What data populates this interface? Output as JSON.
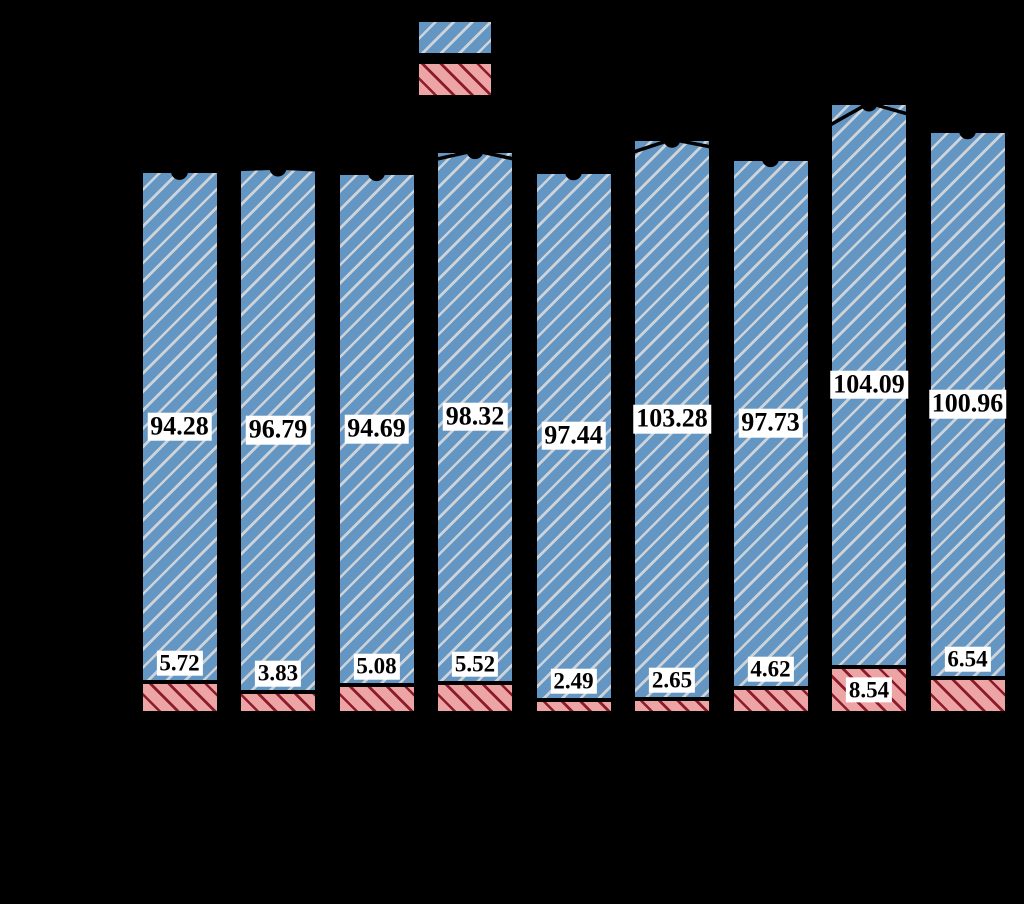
{
  "figure": {
    "background": "#000000",
    "axes_visible": false,
    "text_color_offscreen": "#000000"
  },
  "chart_data": {
    "type": "bar",
    "subtype": "stacked-vertical-with-total-line",
    "n_bars": 9,
    "grid": false,
    "categories_visible": false,
    "series": [
      {
        "name": "blue-top-segment",
        "fill": "#6396c2",
        "hatch": "/",
        "hatch_color": "#ced3d9",
        "edge_color": "#000000",
        "values": [
          94.28,
          96.79,
          94.69,
          98.32,
          97.44,
          103.28,
          97.73,
          104.09,
          100.96
        ],
        "labels": [
          "94.28",
          "96.79",
          "94.69",
          "98.32",
          "97.44",
          "103.28",
          "97.73",
          "104.09",
          "100.96"
        ],
        "label_style": {
          "bg": "#ffffff",
          "color": "#000000"
        }
      },
      {
        "name": "red-bottom-segment",
        "fill": "#eda4a4",
        "hatch": "\\",
        "hatch_color": "#8c1c2c",
        "edge_color": "#000000",
        "values": [
          5.72,
          3.83,
          5.08,
          5.52,
          2.49,
          2.65,
          4.62,
          8.54,
          6.54
        ],
        "labels": [
          "5.72",
          "3.83",
          "5.08",
          "5.52",
          "2.49",
          "2.65",
          "4.62",
          "8.54",
          "6.54"
        ],
        "label_style": {
          "bg": "#ffffff",
          "color": "#000000"
        }
      }
    ],
    "totals_line": {
      "color": "#000000",
      "marker": "circle",
      "values": [
        100.0,
        100.62,
        99.77,
        103.84,
        99.93,
        105.93,
        102.35,
        112.63,
        107.5
      ]
    },
    "legend": {
      "position": "top-center",
      "entries": [
        {
          "swatch_fill": "#6396c2",
          "swatch_hatch": "/",
          "swatch_hatch_color": "#ced3d9"
        },
        {
          "swatch_fill": "#eda4a4",
          "swatch_hatch": "\\",
          "swatch_hatch_color": "#8c1c2c"
        }
      ]
    }
  }
}
